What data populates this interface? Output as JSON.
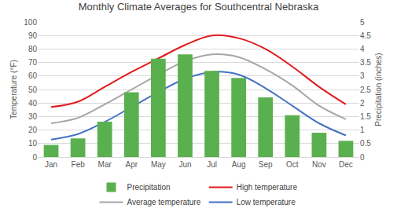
{
  "chart_data": {
    "type": "bar",
    "title": "Monthly Climate Averages for Southcentral Nebraska",
    "y_label": "Temperature (°F)",
    "y2_label": "Precipitation (inches)",
    "categories": [
      "Jan",
      "Feb",
      "Mar",
      "Apr",
      "May",
      "Jun",
      "Jul",
      "Aug",
      "Sep",
      "Oct",
      "Nov",
      "Dec"
    ],
    "series": [
      {
        "name": "Precipitation",
        "type": "bar",
        "axis": "y2",
        "color": "#5ab04e",
        "values": [
          0.45,
          0.69,
          1.31,
          2.4,
          3.64,
          3.8,
          3.19,
          2.93,
          2.21,
          1.55,
          0.9,
          0.6
        ]
      },
      {
        "name": "High temperature",
        "type": "line",
        "line_style": "smooth",
        "color": "#e31a1c",
        "values": [
          37,
          41,
          52,
          63,
          73,
          83,
          90,
          88,
          80,
          67,
          52,
          39
        ]
      },
      {
        "name": "Average temperature",
        "type": "line",
        "line_style": "smooth",
        "color": "#a6a6a6",
        "values": [
          25,
          29,
          39,
          50,
          61,
          71,
          76,
          74,
          65,
          53,
          38,
          28
        ]
      },
      {
        "name": "Low temperature",
        "type": "line",
        "line_style": "smooth",
        "color": "#4472c4",
        "values": [
          13,
          17,
          26,
          37,
          48,
          58,
          63,
          61,
          51,
          38,
          25,
          16
        ]
      }
    ],
    "ylim": [
      0,
      100
    ],
    "yticks": [
      0,
      10,
      20,
      30,
      40,
      50,
      60,
      70,
      80,
      90,
      100
    ],
    "y2lim": [
      0,
      5
    ],
    "y2ticks": [
      0,
      0.5,
      1,
      1.5,
      2,
      2.5,
      3,
      3.5,
      4,
      4.5,
      5
    ],
    "grid": true,
    "legend": "bottom"
  }
}
